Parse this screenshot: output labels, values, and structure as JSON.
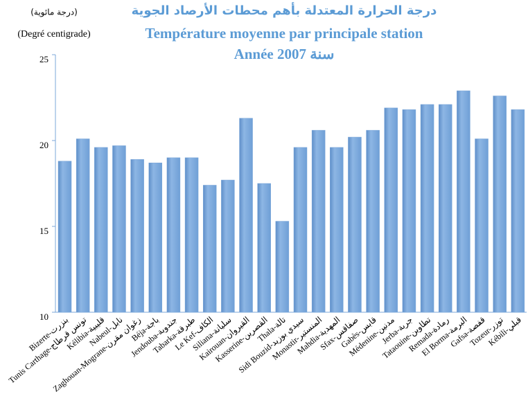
{
  "chart_data": {
    "type": "bar",
    "title": "درجة الحرارة المعتدلة بأهم محطات الأرصاد الجوية",
    "subtitle": "Température moyenne par principale station",
    "year": "Année 2007 سنة",
    "y_label_ar": "(درجة مائوية)",
    "y_label": "(Degré centigrade)",
    "categories": [
      "Bizerte-بنزرت",
      "Tunis Carthage-تونس قرطاج",
      "Kélibia-قليبية",
      "Nabeul-نابل",
      "Zaghouan-Mograne-زغوان مقرن",
      "Béja-باجة",
      "Jendouba-جندوبة",
      "Tabarka-طبرقة",
      "Le Kef-الكاف",
      "Siliana-سليانة",
      "Kairouan-القيروان",
      "Kasserine-القصرين",
      "Thala-تالة",
      "Sidi Bouzid-سيدي بوزيد",
      "Monastir-المنستير",
      "Mahdia-المهدية",
      "Sfax-صفاقس",
      "Gabès-قابس",
      "Médenine-مدنين",
      "Jerba-جربة",
      "Tataouine-تطاوين",
      "Remada-رمادة",
      "El Borma-البرمة",
      "Gafsa-قفصة",
      "Tozeur-توزر",
      "Kébili-قبلي"
    ],
    "values": [
      18.8,
      20.1,
      19.6,
      19.7,
      18.9,
      18.7,
      19.0,
      19.0,
      17.4,
      17.7,
      21.3,
      17.5,
      15.3,
      19.6,
      20.6,
      19.6,
      20.2,
      20.6,
      21.9,
      21.8,
      22.1,
      22.1,
      22.9,
      20.1,
      22.6,
      21.8
    ],
    "color": "#7ba7d9",
    "ylim": [
      10,
      25
    ],
    "yticks": [
      10,
      15,
      20,
      25
    ],
    "grid": false
  }
}
